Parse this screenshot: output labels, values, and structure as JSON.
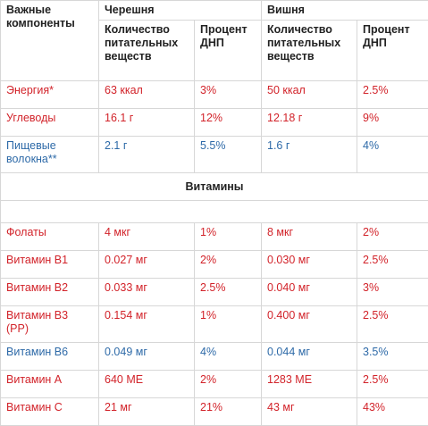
{
  "header": {
    "components_label": "Важные компоненты",
    "col_cherry_sweet": "Черешня",
    "col_cherry": "Вишня",
    "sub_amount": "Количество питательных веществ",
    "sub_percent": "Процент ДНП"
  },
  "colors": {
    "red": "#d2232a",
    "blue": "#2e6aa8"
  },
  "rows_main": [
    {
      "name": "Энергия*",
      "a1": "63 ккал",
      "p1": "3%",
      "a2": "50 ккал",
      "p2": "2.5%",
      "color": "red"
    },
    {
      "name": "Углеводы",
      "a1": "16.1 г",
      "p1": "12%",
      "a2": "12.18 г",
      "p2": "9%",
      "color": "red"
    },
    {
      "name": "Пищевые волокна**",
      "a1": "2.1 г",
      "p1": "5.5%",
      "a2": "1.6 г",
      "p2": "4%",
      "color": "blue"
    }
  ],
  "section_vitamins": "Витамины",
  "rows_vitamins": [
    {
      "name": "Фолаты",
      "a1": "4 мкг",
      "p1": "1%",
      "a2": "8 мкг",
      "p2": "2%",
      "color": "red"
    },
    {
      "name": "Витамин B1",
      "a1": "0.027 мг",
      "p1": "2%",
      "a2": "0.030 мг",
      "p2": "2.5%",
      "color": "red"
    },
    {
      "name": "Витамин B2",
      "a1": "0.033 мг",
      "p1": "2.5%",
      "a2": "0.040 мг",
      "p2": "3%",
      "color": "red"
    },
    {
      "name": "Витамин B3 (PP)",
      "a1": "0.154 мг",
      "p1": "1%",
      "a2": "0.400 мг",
      "p2": "2.5%",
      "color": "red"
    },
    {
      "name": "Витамин B6",
      "a1": "0.049 мг",
      "p1": "4%",
      "a2": "0.044 мг",
      "p2": "3.5%",
      "color": "blue"
    },
    {
      "name": "Витамин A",
      "a1": "640 МЕ",
      "p1": "2%",
      "a2": "1283 МЕ",
      "p2": "2.5%",
      "color": "red"
    },
    {
      "name": "Витамин C",
      "a1": "21 мг",
      "p1": "21%",
      "a2": "43 мг",
      "p2": "43%",
      "color": "red",
      "bold": true
    }
  ]
}
